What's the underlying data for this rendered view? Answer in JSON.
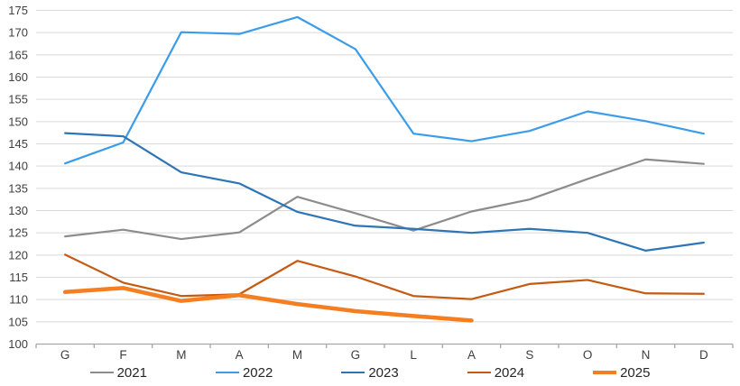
{
  "chart_data": {
    "type": "line",
    "title": "",
    "xlabel": "",
    "ylabel": "",
    "categories": [
      "G",
      "F",
      "M",
      "A",
      "M",
      "G",
      "L",
      "A",
      "S",
      "O",
      "N",
      "D"
    ],
    "series": [
      {
        "name": "2021",
        "color": "#8C8C8C",
        "width": 2.2,
        "values": [
          124.2,
          125.7,
          123.6,
          125.1,
          133.1,
          129.4,
          125.5,
          129.8,
          132.5,
          137.1,
          141.5,
          140.5
        ]
      },
      {
        "name": "2022",
        "color": "#3B9CEA",
        "width": 2.2,
        "values": [
          140.6,
          145.3,
          170.1,
          169.7,
          173.5,
          166.3,
          147.3,
          145.6,
          147.9,
          152.3,
          150.1,
          147.3
        ]
      },
      {
        "name": "2023",
        "color": "#2E75B6",
        "width": 2.2,
        "values": [
          147.4,
          146.7,
          138.6,
          136.1,
          129.7,
          126.6,
          125.9,
          125.0,
          125.9,
          125.0,
          121.0,
          122.8
        ]
      },
      {
        "name": "2024",
        "color": "#C55A11",
        "width": 2.2,
        "values": [
          120.1,
          113.8,
          110.8,
          111.2,
          118.7,
          115.2,
          110.8,
          110.1,
          113.5,
          114.4,
          111.4,
          111.3
        ]
      },
      {
        "name": "2025",
        "color": "#F57E20",
        "width": 4.5,
        "values": [
          111.7,
          112.6,
          109.7,
          111.0,
          109.0,
          107.4,
          106.3,
          105.3,
          null,
          null,
          null,
          null
        ]
      }
    ],
    "ylim": [
      100,
      175
    ],
    "ytick_step": 5,
    "grid": "horizontal",
    "gridline_color": "#D9D9D9",
    "axis_line_color": "#A6A6A6",
    "tick_label_color": "#404040",
    "legend_position": "bottom",
    "legend_labels": [
      "2021",
      "2022",
      "2023",
      "2024",
      "2025"
    ]
  }
}
